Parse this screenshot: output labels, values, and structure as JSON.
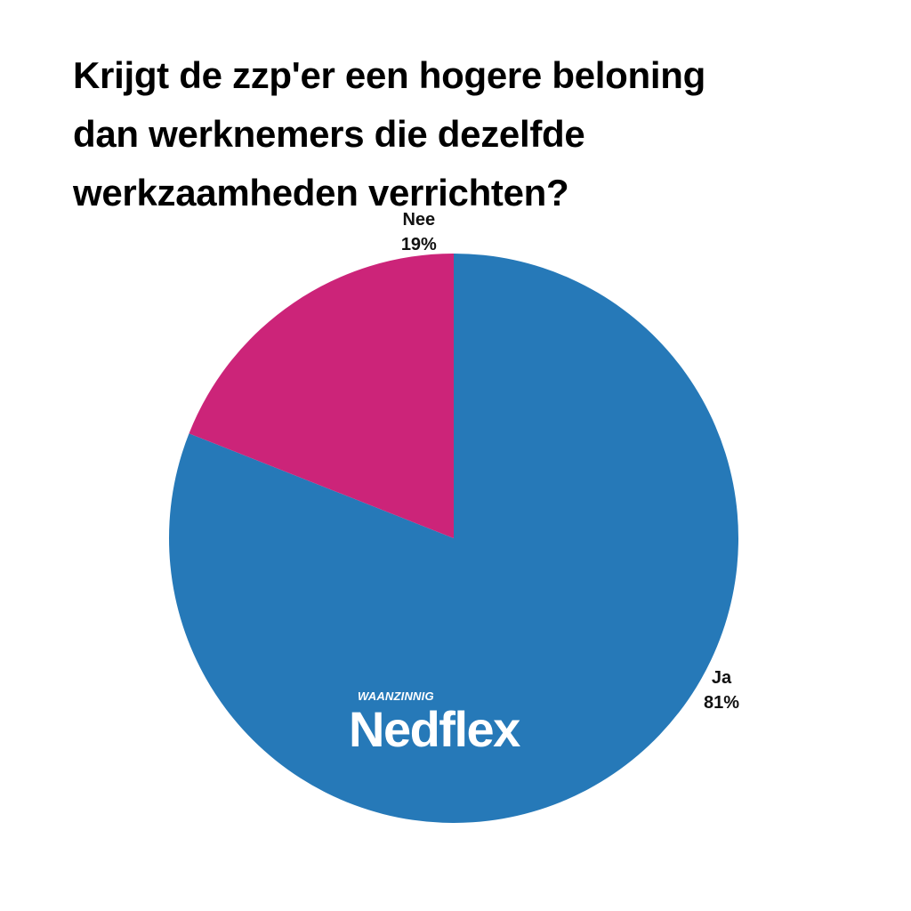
{
  "chart_data": {
    "type": "pie",
    "title": "Krijgt de zzp'er een hogere beloning\ndan werknemers die dezelfde\nwerkzaamheden verrichten?",
    "slices": [
      {
        "label": "Ja",
        "value": 81,
        "display": "81%",
        "color": "#2679b8"
      },
      {
        "label": "Nee",
        "value": 19,
        "display": "19%",
        "color": "#cc2479"
      }
    ],
    "start_angle_deg": 0,
    "direction": "clockwise"
  },
  "watermark": {
    "tagline": "WAANZINNIG",
    "brand": "Nedflex"
  }
}
